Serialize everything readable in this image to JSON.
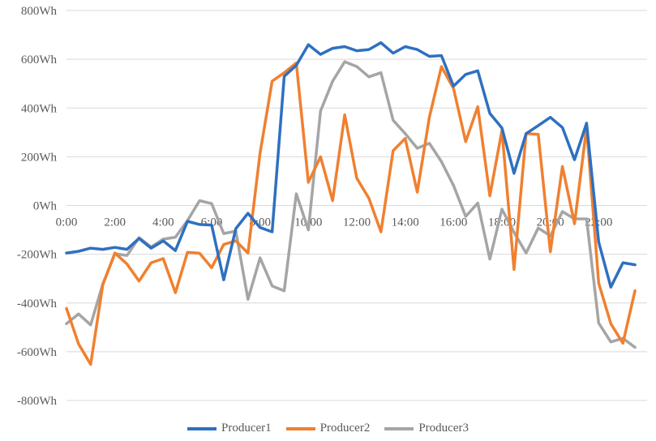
{
  "chart_data": {
    "type": "line",
    "title": "",
    "xlabel": "",
    "ylabel": "",
    "ylim": [
      -800,
      800
    ],
    "y_ticks": [
      "800Wh",
      "600Wh",
      "400Wh",
      "200Wh",
      "0Wh",
      "-200Wh",
      "-400Wh",
      "-600Wh",
      "-800Wh"
    ],
    "x_ticks": [
      "0:00",
      "2:00",
      "4:00",
      "6:00",
      "8:00",
      "10:00",
      "12:00",
      "14:00",
      "16:00",
      "18:00",
      "20:00",
      "22:00"
    ],
    "grid": "horizontal",
    "legend_position": "bottom",
    "x": [
      "0:00",
      "0:30",
      "1:00",
      "1:30",
      "2:00",
      "2:30",
      "3:00",
      "3:30",
      "4:00",
      "4:30",
      "5:00",
      "5:30",
      "6:00",
      "6:30",
      "7:00",
      "7:30",
      "8:00",
      "8:30",
      "9:00",
      "9:30",
      "10:00",
      "10:30",
      "11:00",
      "11:30",
      "12:00",
      "12:30",
      "13:00",
      "13:30",
      "14:00",
      "14:30",
      "15:00",
      "15:30",
      "16:00",
      "16:30",
      "17:00",
      "17:30",
      "18:00",
      "18:30",
      "19:00",
      "19:30",
      "20:00",
      "20:30",
      "21:00",
      "21:30",
      "22:00",
      "22:30",
      "23:00",
      "23:30"
    ],
    "series": [
      {
        "name": "Producer1",
        "color": "#2e70c0",
        "values": [
          -195,
          -188,
          -175,
          -180,
          -172,
          -180,
          -135,
          -175,
          -145,
          -185,
          -65,
          -78,
          -80,
          -305,
          -95,
          -32,
          -90,
          -108,
          530,
          575,
          660,
          620,
          645,
          652,
          635,
          640,
          668,
          625,
          652,
          640,
          612,
          615,
          490,
          538,
          553,
          378,
          318,
          132,
          295,
          328,
          362,
          320,
          188,
          338,
          -150,
          -335,
          -235,
          -243
        ]
      },
      {
        "name": "Producer2",
        "color": "#f08030",
        "values": [
          -422,
          -568,
          -652,
          -325,
          -195,
          -240,
          -310,
          -235,
          -218,
          -358,
          -192,
          -196,
          -255,
          -160,
          -145,
          -195,
          215,
          510,
          545,
          585,
          95,
          200,
          20,
          372,
          112,
          30,
          -108,
          225,
          275,
          55,
          362,
          570,
          480,
          262,
          405,
          40,
          308,
          -262,
          295,
          292,
          -190,
          160,
          -75,
          320,
          -318,
          -485,
          -565,
          -350
        ]
      },
      {
        "name": "Producer3",
        "color": "#a5a5a5",
        "values": [
          -485,
          -445,
          -490,
          -322,
          -198,
          -205,
          -132,
          -170,
          -138,
          -130,
          -62,
          20,
          8,
          -115,
          -105,
          -385,
          -215,
          -330,
          -350,
          48,
          -100,
          388,
          510,
          590,
          570,
          528,
          545,
          350,
          295,
          235,
          255,
          180,
          82,
          -45,
          10,
          -220,
          -15,
          -110,
          -195,
          -92,
          -125,
          -25,
          -55,
          -55,
          -482,
          -560,
          -545,
          -582
        ]
      }
    ]
  }
}
